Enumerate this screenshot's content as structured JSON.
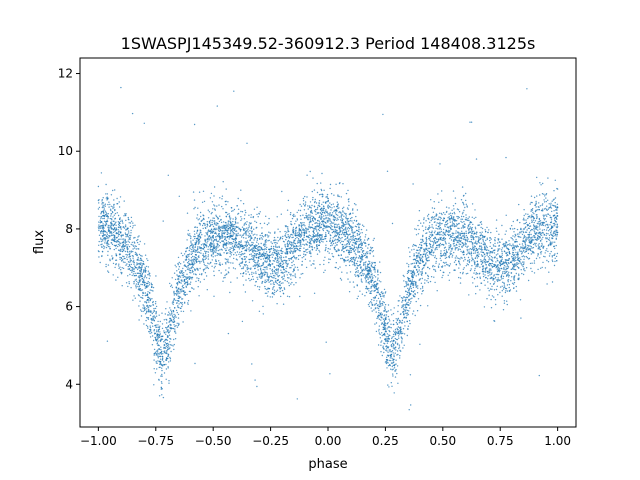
{
  "chart_data": {
    "type": "scatter",
    "title": "1SWASPJ145349.52-360912.3 Period 148408.3125s",
    "xlabel": "phase",
    "ylabel": "flux",
    "xlim": [
      -1.08,
      1.08
    ],
    "ylim": [
      2.9,
      12.4
    ],
    "x_ticks": [
      -1.0,
      -0.75,
      -0.5,
      -0.25,
      0.0,
      0.25,
      0.5,
      0.75,
      1.0
    ],
    "x_tick_labels": [
      "−1.00",
      "−0.75",
      "−0.50",
      "−0.25",
      "0.00",
      "0.25",
      "0.50",
      "0.75",
      "1.00"
    ],
    "y_ticks": [
      4,
      6,
      8,
      10,
      12
    ],
    "y_tick_labels": [
      "4",
      "6",
      "8",
      "10",
      "12"
    ],
    "grid": false,
    "legend": "none",
    "series": [
      {
        "color": "#1f77b4",
        "mean_curve": {
          "x": [
            -1.0,
            -0.95,
            -0.9,
            -0.85,
            -0.8,
            -0.77,
            -0.75,
            -0.73,
            -0.72,
            -0.7,
            -0.68,
            -0.65,
            -0.6,
            -0.55,
            -0.5,
            -0.45,
            -0.4,
            -0.35,
            -0.3,
            -0.25,
            -0.2,
            -0.15,
            -0.1,
            -0.05,
            0.0,
            0.05,
            0.1,
            0.15,
            0.2,
            0.23,
            0.25,
            0.27,
            0.28,
            0.3,
            0.32,
            0.35,
            0.4,
            0.45,
            0.5,
            0.55,
            0.6,
            0.65,
            0.7,
            0.75,
            0.8,
            0.85,
            0.9,
            0.95,
            1.0
          ],
          "y": [
            8.1,
            8.0,
            7.75,
            7.3,
            6.6,
            5.9,
            5.4,
            4.85,
            4.7,
            5.0,
            5.6,
            6.4,
            7.2,
            7.6,
            7.8,
            7.85,
            7.75,
            7.5,
            7.25,
            7.1,
            7.2,
            7.6,
            7.9,
            8.05,
            8.1,
            8.0,
            7.75,
            7.3,
            6.6,
            5.9,
            5.4,
            4.85,
            4.7,
            5.0,
            5.6,
            6.4,
            7.2,
            7.6,
            7.8,
            7.85,
            7.75,
            7.5,
            7.25,
            7.1,
            7.2,
            7.6,
            7.9,
            8.05,
            8.1
          ]
        },
        "scatter_sd": [
          0.45,
          0.45,
          0.45,
          0.45,
          0.45,
          0.45,
          0.45,
          0.45,
          0.45,
          0.45,
          0.45,
          0.45,
          0.45,
          0.45,
          0.45,
          0.45,
          0.45,
          0.45,
          0.45,
          0.45,
          0.45,
          0.45,
          0.45,
          0.45,
          0.45,
          0.45,
          0.45,
          0.45,
          0.45,
          0.45,
          0.45,
          0.45,
          0.45,
          0.45,
          0.45,
          0.45,
          0.45,
          0.45,
          0.45,
          0.45,
          0.45,
          0.45,
          0.45,
          0.45,
          0.45,
          0.45,
          0.45,
          0.45,
          0.45
        ],
        "n_points": 7000,
        "outlier_fraction": 0.01,
        "outlier_range": [
          3.3,
          12.0
        ]
      }
    ]
  }
}
